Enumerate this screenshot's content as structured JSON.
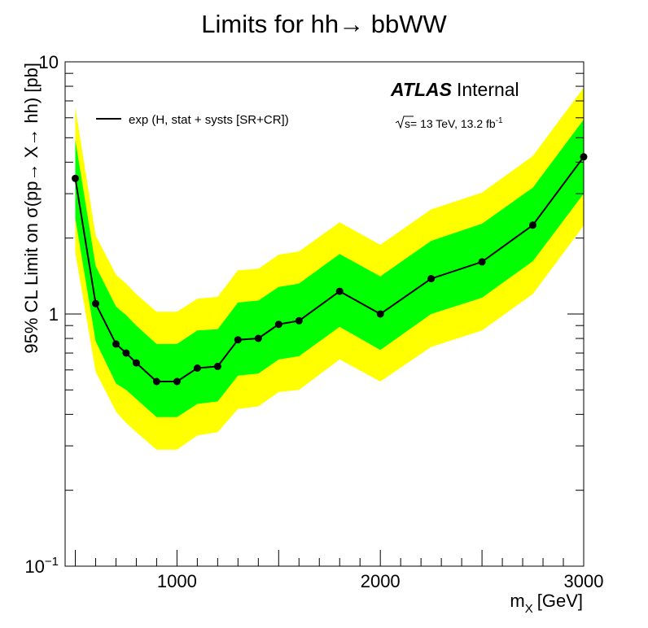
{
  "chart_data": {
    "type": "line",
    "title": "Limits for hh→ bbWW",
    "xlabel": "m",
    "xlabel_sub": "X",
    "xlabel_unit": "[GeV]",
    "ylabel": "95% CL Limit on σ(pp→ X→ hh) [pb]",
    "xlim": [
      450,
      3000
    ],
    "ylim": [
      0.1,
      10
    ],
    "yscale": "log",
    "x_ticks": [
      {
        "value": 1000,
        "label": "1000"
      },
      {
        "value": 2000,
        "label": "2000"
      },
      {
        "value": 3000,
        "label": "3000"
      }
    ],
    "y_ticks": [
      {
        "value": 0.1,
        "base": "10",
        "exp": "−1"
      },
      {
        "value": 1,
        "label": "1"
      },
      {
        "value": 10,
        "label": "10"
      }
    ],
    "series": [
      {
        "name": "exp (H, stat + systs [SR+CR])",
        "color": "#000000",
        "x": [
          500,
          600,
          700,
          750,
          800,
          900,
          1000,
          1100,
          1200,
          1300,
          1400,
          1500,
          1600,
          1800,
          2000,
          2250,
          2500,
          2750,
          3000
        ],
        "y": [
          3.45,
          1.1,
          0.76,
          0.7,
          0.64,
          0.54,
          0.54,
          0.61,
          0.62,
          0.79,
          0.8,
          0.91,
          0.94,
          1.23,
          1.0,
          1.38,
          1.61,
          2.25,
          4.2
        ],
        "band_1sigma": {
          "color": "#00ff00",
          "low": [
            2.4,
            0.78,
            0.53,
            0.5,
            0.46,
            0.39,
            0.39,
            0.44,
            0.45,
            0.57,
            0.58,
            0.66,
            0.68,
            0.89,
            0.72,
            1.0,
            1.16,
            1.62,
            3.0
          ],
          "high": [
            4.9,
            1.55,
            1.07,
            0.99,
            0.9,
            0.76,
            0.76,
            0.86,
            0.87,
            1.11,
            1.13,
            1.28,
            1.32,
            1.73,
            1.41,
            1.95,
            2.28,
            3.17,
            5.9
          ]
        },
        "band_2sigma": {
          "color": "#ffff00",
          "low": [
            1.75,
            0.59,
            0.41,
            0.37,
            0.34,
            0.29,
            0.29,
            0.33,
            0.34,
            0.42,
            0.43,
            0.49,
            0.5,
            0.66,
            0.54,
            0.74,
            0.86,
            1.2,
            2.24
          ],
          "high": [
            6.6,
            2.05,
            1.43,
            1.32,
            1.2,
            1.02,
            1.02,
            1.15,
            1.17,
            1.49,
            1.51,
            1.72,
            1.77,
            2.31,
            1.88,
            2.6,
            3.03,
            4.23,
            7.9
          ]
        }
      }
    ],
    "legend": {
      "placement": "top-left",
      "entries": [
        "exp (H, stat + systs [SR+CR])"
      ]
    },
    "annotations": {
      "experiment": "ATLAS",
      "status": "Internal",
      "energy_prefix": "s",
      "energy_text": "= 13 TeV, 13.2 fb",
      "lumi_exp": "-1"
    },
    "grid": false
  }
}
